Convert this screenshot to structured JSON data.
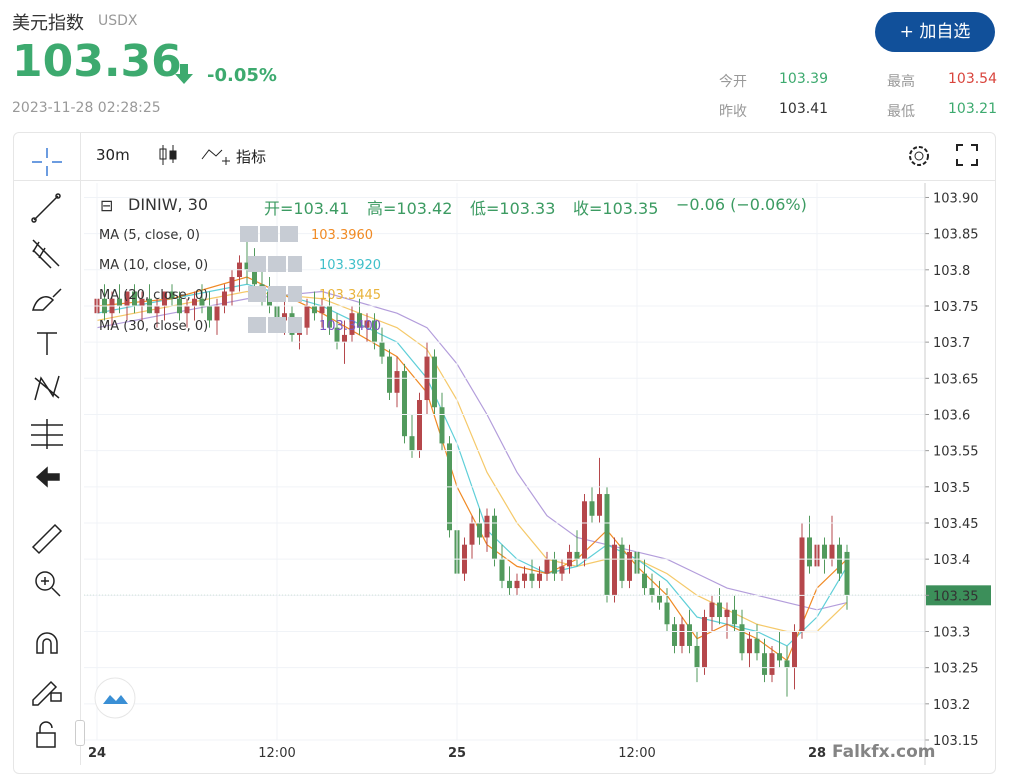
{
  "header": {
    "title": "美元指数",
    "symbol": "USDX",
    "price": "103.36",
    "change": "-0.05%",
    "time": "2023-11-28 02:28:25",
    "button": "+ 加自选",
    "stats": [
      {
        "label": "今开",
        "value": "103.39"
      },
      {
        "label": "最高",
        "value": "103.54"
      },
      {
        "label": "昨收",
        "value": "103.41"
      },
      {
        "label": "最低",
        "value": "103.21"
      }
    ]
  },
  "toolbar": {
    "interval": "30m",
    "indicators": "指标"
  },
  "legend": {
    "symbol": "DINIW, 30",
    "open": "开=103.41",
    "high": "高=103.42",
    "low": "低=103.33",
    "close": "收=103.35",
    "change": "−0.06 (−0.06%)",
    "ma": [
      {
        "name": "MA (5, close, 0)",
        "value": "103.3960"
      },
      {
        "name": "MA (10, close, 0)",
        "value": "103.3920"
      },
      {
        "name": "MA (20, close, 0)",
        "value": "103.3445"
      },
      {
        "name": "MA (30, close, 0)",
        "value": "103.3400"
      }
    ]
  },
  "watermark": "Falkfx.com",
  "chart_data": {
    "type": "candlestick",
    "color_up": "#b5474b",
    "color_down": "#529a5d",
    "categories": [
      "24",
      null,
      null,
      null,
      null,
      null,
      null,
      null,
      null,
      null,
      null,
      null,
      null,
      null,
      null,
      null,
      null,
      null,
      null,
      null,
      null,
      null,
      null,
      null,
      "12:00",
      null,
      null,
      null,
      null,
      null,
      null,
      null,
      null,
      null,
      null,
      null,
      null,
      null,
      null,
      null,
      null,
      null,
      null,
      null,
      null,
      null,
      null,
      null,
      "25",
      null,
      null,
      null,
      null,
      null,
      null,
      null,
      null,
      null,
      null,
      null,
      null,
      null,
      null,
      null,
      null,
      null,
      null,
      null,
      null,
      null,
      null,
      null,
      "12:00",
      null,
      null,
      null,
      null,
      null,
      null,
      null,
      null,
      null,
      null,
      null,
      null,
      null,
      null,
      null,
      null,
      null,
      null,
      null,
      null,
      null,
      null,
      null,
      "28",
      null,
      null,
      null,
      null
    ],
    "ohlc": [
      [
        103.74,
        103.77,
        103.72,
        103.76
      ],
      [
        103.76,
        103.78,
        103.73,
        103.74
      ],
      [
        103.74,
        103.77,
        103.72,
        103.76
      ],
      [
        103.76,
        103.78,
        103.74,
        103.75
      ],
      [
        103.75,
        103.77,
        103.73,
        103.77
      ],
      [
        103.77,
        103.78,
        103.74,
        103.75
      ],
      [
        103.75,
        103.77,
        103.73,
        103.76
      ],
      [
        103.76,
        103.78,
        103.74,
        103.74
      ],
      [
        103.74,
        103.76,
        103.72,
        103.75
      ],
      [
        103.75,
        103.77,
        103.73,
        103.77
      ],
      [
        103.77,
        103.78,
        103.75,
        103.76
      ],
      [
        103.76,
        103.77,
        103.73,
        103.74
      ],
      [
        103.74,
        103.76,
        103.72,
        103.75
      ],
      [
        103.75,
        103.77,
        103.73,
        103.76
      ],
      [
        103.76,
        103.78,
        103.74,
        103.75
      ],
      [
        103.75,
        103.77,
        103.72,
        103.73
      ],
      [
        103.73,
        103.76,
        103.71,
        103.75
      ],
      [
        103.75,
        103.78,
        103.74,
        103.77
      ],
      [
        103.77,
        103.8,
        103.75,
        103.79
      ],
      [
        103.79,
        103.82,
        103.77,
        103.81
      ],
      [
        103.81,
        103.84,
        103.78,
        103.8
      ],
      [
        103.8,
        103.83,
        103.77,
        103.78
      ],
      [
        103.78,
        103.8,
        103.75,
        103.77
      ],
      [
        103.77,
        103.79,
        103.74,
        103.75
      ],
      [
        103.75,
        103.77,
        103.72,
        103.73
      ],
      [
        103.73,
        103.76,
        103.71,
        103.74
      ],
      [
        103.74,
        103.75,
        103.7,
        103.71
      ],
      [
        103.71,
        103.73,
        103.69,
        103.72
      ],
      [
        103.72,
        103.76,
        103.71,
        103.75
      ],
      [
        103.75,
        103.77,
        103.73,
        103.74
      ],
      [
        103.74,
        103.76,
        103.72,
        103.75
      ],
      [
        103.75,
        103.77,
        103.71,
        103.72
      ],
      [
        103.72,
        103.74,
        103.69,
        103.7
      ],
      [
        103.7,
        103.73,
        103.67,
        103.71
      ],
      [
        103.71,
        103.75,
        103.7,
        103.74
      ],
      [
        103.74,
        103.76,
        103.71,
        103.72
      ],
      [
        103.72,
        103.74,
        103.7,
        103.73
      ],
      [
        103.73,
        103.74,
        103.69,
        103.7
      ],
      [
        103.7,
        103.72,
        103.67,
        103.68
      ],
      [
        103.68,
        103.69,
        103.62,
        103.63
      ],
      [
        103.63,
        103.68,
        103.61,
        103.66
      ],
      [
        103.66,
        103.67,
        103.56,
        103.57
      ],
      [
        103.57,
        103.6,
        103.54,
        103.55
      ],
      [
        103.55,
        103.63,
        103.54,
        103.62
      ],
      [
        103.62,
        103.7,
        103.6,
        103.68
      ],
      [
        103.68,
        103.69,
        103.6,
        103.61
      ],
      [
        103.61,
        103.63,
        103.55,
        103.56
      ],
      [
        103.56,
        103.57,
        103.43,
        103.44
      ],
      [
        103.44,
        103.46,
        103.36,
        103.38
      ],
      [
        103.38,
        103.43,
        103.37,
        103.42
      ],
      [
        103.42,
        103.46,
        103.4,
        103.45
      ],
      [
        103.45,
        103.47,
        103.42,
        103.43
      ],
      [
        103.43,
        103.47,
        103.41,
        103.46
      ],
      [
        103.46,
        103.47,
        103.39,
        103.4
      ],
      [
        103.4,
        103.42,
        103.36,
        103.37
      ],
      [
        103.37,
        103.39,
        103.35,
        103.36
      ],
      [
        103.36,
        103.38,
        103.35,
        103.37
      ],
      [
        103.37,
        103.39,
        103.36,
        103.38
      ],
      [
        103.38,
        103.4,
        103.36,
        103.37
      ],
      [
        103.37,
        103.39,
        103.36,
        103.38
      ],
      [
        103.38,
        103.41,
        103.37,
        103.4
      ],
      [
        103.4,
        103.41,
        103.37,
        103.38
      ],
      [
        103.38,
        103.4,
        103.37,
        103.39
      ],
      [
        103.39,
        103.42,
        103.38,
        103.41
      ],
      [
        103.41,
        103.44,
        103.39,
        103.4
      ],
      [
        103.4,
        103.49,
        103.39,
        103.48
      ],
      [
        103.48,
        103.5,
        103.45,
        103.46
      ],
      [
        103.46,
        103.54,
        103.45,
        103.49
      ],
      [
        103.49,
        103.5,
        103.34,
        103.35
      ],
      [
        103.35,
        103.43,
        103.34,
        103.42
      ],
      [
        103.42,
        103.43,
        103.36,
        103.37
      ],
      [
        103.37,
        103.42,
        103.36,
        103.41
      ],
      [
        103.41,
        103.42,
        103.37,
        103.38
      ],
      [
        103.38,
        103.4,
        103.35,
        103.36
      ],
      [
        103.36,
        103.38,
        103.34,
        103.35
      ],
      [
        103.35,
        103.37,
        103.33,
        103.34
      ],
      [
        103.34,
        103.36,
        103.3,
        103.31
      ],
      [
        103.31,
        103.32,
        103.27,
        103.28
      ],
      [
        103.28,
        103.32,
        103.27,
        103.31
      ],
      [
        103.31,
        103.33,
        103.27,
        103.28
      ],
      [
        103.28,
        103.3,
        103.23,
        103.25
      ],
      [
        103.25,
        103.33,
        103.24,
        103.32
      ],
      [
        103.32,
        103.35,
        103.3,
        103.34
      ],
      [
        103.34,
        103.36,
        103.31,
        103.32
      ],
      [
        103.32,
        103.34,
        103.29,
        103.33
      ],
      [
        103.33,
        103.35,
        103.3,
        103.31
      ],
      [
        103.31,
        103.33,
        103.26,
        103.27
      ],
      [
        103.27,
        103.3,
        103.25,
        103.29
      ],
      [
        103.29,
        103.31,
        103.26,
        103.27
      ],
      [
        103.27,
        103.29,
        103.23,
        103.24
      ],
      [
        103.24,
        103.28,
        103.23,
        103.27
      ],
      [
        103.27,
        103.3,
        103.25,
        103.26
      ],
      [
        103.26,
        103.28,
        103.21,
        103.25
      ],
      [
        103.25,
        103.31,
        103.22,
        103.3
      ],
      [
        103.3,
        103.45,
        103.29,
        103.43
      ],
      [
        103.43,
        103.46,
        103.38,
        103.39
      ],
      [
        103.39,
        103.44,
        103.36,
        103.42
      ],
      [
        103.42,
        103.43,
        103.38,
        103.4
      ],
      [
        103.4,
        103.46,
        103.39,
        103.42
      ],
      [
        103.42,
        103.43,
        103.37,
        103.38
      ],
      [
        103.41,
        103.42,
        103.33,
        103.35
      ]
    ],
    "lines": [
      {
        "color": "#f08a24",
        "x": [
          0,
          10,
          20,
          30,
          40,
          44,
          48,
          52,
          56,
          60,
          64,
          68,
          72,
          76,
          80,
          84,
          88,
          92,
          96,
          100
        ],
        "values": [
          103.75,
          103.76,
          103.79,
          103.74,
          103.68,
          103.63,
          103.5,
          103.42,
          103.39,
          103.38,
          103.4,
          103.44,
          103.39,
          103.35,
          103.29,
          103.31,
          103.29,
          103.26,
          103.36,
          103.4
        ]
      },
      {
        "color": "#5fcfd8",
        "x": [
          0,
          10,
          20,
          30,
          40,
          44,
          48,
          52,
          56,
          60,
          64,
          68,
          72,
          76,
          80,
          84,
          88,
          92,
          96,
          100
        ],
        "values": [
          103.74,
          103.76,
          103.78,
          103.75,
          103.7,
          103.65,
          103.56,
          103.44,
          103.4,
          103.38,
          103.39,
          103.42,
          103.4,
          103.37,
          103.32,
          103.31,
          103.3,
          103.28,
          103.32,
          103.39
        ]
      },
      {
        "color": "#f5c96a",
        "x": [
          0,
          10,
          20,
          30,
          40,
          44,
          48,
          52,
          56,
          60,
          64,
          68,
          72,
          76,
          80,
          84,
          88,
          92,
          96,
          100
        ],
        "values": [
          103.73,
          103.75,
          103.77,
          103.76,
          103.72,
          103.69,
          103.62,
          103.52,
          103.45,
          103.4,
          103.39,
          103.4,
          103.4,
          103.38,
          103.35,
          103.33,
          103.31,
          103.3,
          103.3,
          103.34
        ]
      },
      {
        "color": "#b39ddb",
        "x": [
          0,
          10,
          20,
          30,
          40,
          44,
          48,
          52,
          56,
          60,
          64,
          68,
          72,
          76,
          80,
          84,
          88,
          92,
          96,
          100
        ],
        "values": [
          103.72,
          103.74,
          103.76,
          103.77,
          103.74,
          103.72,
          103.67,
          103.6,
          103.52,
          103.46,
          103.43,
          103.42,
          103.41,
          103.4,
          103.38,
          103.36,
          103.35,
          103.34,
          103.33,
          103.34
        ]
      }
    ],
    "last_price": 103.35,
    "ylim": [
      103.15,
      103.92
    ],
    "yticks": [
      103.15,
      103.2,
      103.25,
      103.3,
      103.35,
      103.4,
      103.45,
      103.5,
      103.55,
      103.6,
      103.65,
      103.7,
      103.75,
      103.8,
      103.85,
      {
        "value": 103.9,
        "label": "103.90"
      }
    ],
    "grid": true
  }
}
